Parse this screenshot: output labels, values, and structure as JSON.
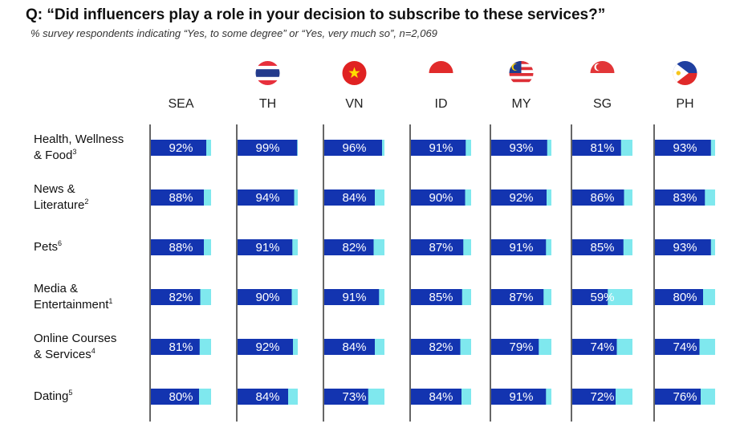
{
  "chart_data": {
    "type": "bar",
    "orientation": "horizontal",
    "layout": "small-multiples",
    "title": "Q: “Did influencers play a role in your decision to subscribe to these services?”",
    "subtitle": "% survey respondents indicating “Yes, to some degree” or “Yes, very much so”, n=2,069",
    "xlim": [
      0,
      100
    ],
    "value_suffix": "%",
    "regions": [
      {
        "code": "SEA",
        "flag": "none"
      },
      {
        "code": "TH",
        "flag": "thailand-flag-icon"
      },
      {
        "code": "VN",
        "flag": "vietnam-flag-icon"
      },
      {
        "code": "ID",
        "flag": "indonesia-flag-icon"
      },
      {
        "code": "MY",
        "flag": "malaysia-flag-icon"
      },
      {
        "code": "SG",
        "flag": "singapore-flag-icon"
      },
      {
        "code": "PH",
        "flag": "philippines-flag-icon"
      }
    ],
    "categories": [
      {
        "label_lines": [
          "Health, Wellness",
          "& Food"
        ],
        "footnote": "3",
        "values": [
          92,
          99,
          96,
          91,
          93,
          81,
          93
        ]
      },
      {
        "label_lines": [
          "News &",
          "Literature"
        ],
        "footnote": "2",
        "values": [
          88,
          94,
          84,
          90,
          92,
          86,
          83
        ]
      },
      {
        "label_lines": [
          "Pets"
        ],
        "footnote": "6",
        "values": [
          88,
          91,
          82,
          87,
          91,
          85,
          93
        ]
      },
      {
        "label_lines": [
          "Media &",
          "Entertainment"
        ],
        "footnote": "1",
        "values": [
          82,
          90,
          91,
          85,
          87,
          59,
          80
        ]
      },
      {
        "label_lines": [
          "Online Courses",
          "& Services"
        ],
        "footnote": "4",
        "values": [
          81,
          92,
          84,
          82,
          79,
          74,
          74
        ]
      },
      {
        "label_lines": [
          "Dating"
        ],
        "footnote": "5",
        "values": [
          80,
          84,
          73,
          84,
          91,
          72,
          76
        ]
      }
    ],
    "colors": {
      "bar": "#1334b0",
      "remainder": "#7fe8ee",
      "axis": "#333333",
      "bar_text": "#ffffff"
    }
  }
}
